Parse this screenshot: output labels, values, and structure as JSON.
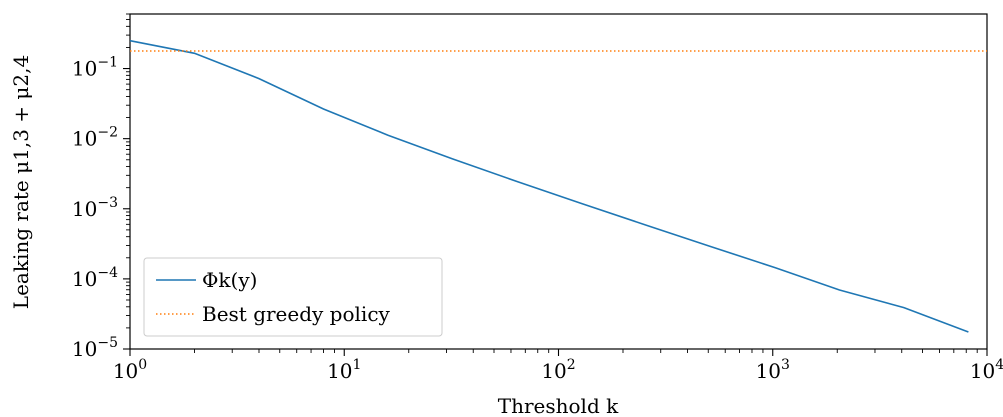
{
  "chart_data": {
    "type": "line",
    "title": "",
    "xlabel": "Threshold k",
    "ylabel": "Leaking rate μ1,3 + μ2,4",
    "xscale": "log",
    "yscale": "log",
    "xlim": [
      1,
      10000
    ],
    "ylim": [
      1e-05,
      0.6
    ],
    "x_ticks": [
      {
        "base": "10",
        "exp": "0",
        "value": 1
      },
      {
        "base": "10",
        "exp": "1",
        "value": 10
      },
      {
        "base": "10",
        "exp": "2",
        "value": 100
      },
      {
        "base": "10",
        "exp": "3",
        "value": 1000
      },
      {
        "base": "10",
        "exp": "4",
        "value": 10000
      }
    ],
    "y_ticks": [
      {
        "base": "10",
        "exp": "−5",
        "value": 1e-05
      },
      {
        "base": "10",
        "exp": "−4",
        "value": 0.0001
      },
      {
        "base": "10",
        "exp": "−3",
        "value": 0.001
      },
      {
        "base": "10",
        "exp": "−2",
        "value": 0.01
      },
      {
        "base": "10",
        "exp": "−1",
        "value": 0.1
      }
    ],
    "grid": false,
    "legend_position": "lower-left",
    "series": [
      {
        "name": "Φk(y)",
        "style": "solid",
        "color": "#1f77b4",
        "x": [
          1,
          2,
          4,
          8,
          16,
          32,
          64,
          128,
          256,
          512,
          1024,
          2048,
          4096,
          8192
        ],
        "y": [
          0.25,
          0.165,
          0.072,
          0.0265,
          0.0112,
          0.00515,
          0.00245,
          0.00119,
          0.000585,
          0.00029,
          0.000145,
          6.95e-05,
          3.9e-05,
          1.75e-05
        ]
      },
      {
        "name": "Best greedy policy",
        "style": "dotted",
        "color": "#ff7f0e",
        "x": [
          1,
          10000
        ],
        "y": [
          0.178,
          0.178
        ]
      }
    ]
  }
}
